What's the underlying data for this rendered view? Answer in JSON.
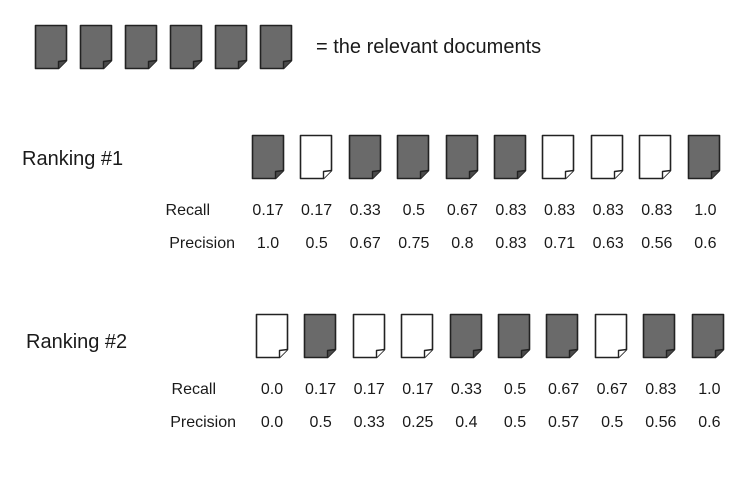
{
  "legend": {
    "text": "= the relevant documents",
    "relevant_count": 6
  },
  "colors": {
    "relevant_fill": "#6a6a6a",
    "nonrelevant_fill": "#ffffff",
    "stroke": "#222222"
  },
  "rankings": [
    {
      "label": "Ranking #1",
      "documents": [
        true,
        false,
        true,
        true,
        true,
        true,
        false,
        false,
        false,
        true
      ],
      "recall_label": "Recall",
      "precision_label": "Precision",
      "recall": [
        "0.17",
        "0.17",
        "0.33",
        "0.5",
        "0.67",
        "0.83",
        "0.83",
        "0.83",
        "0.83",
        "1.0"
      ],
      "precision": [
        "1.0",
        "0.5",
        "0.67",
        "0.75",
        "0.8",
        "0.83",
        "0.71",
        "0.63",
        "0.56",
        "0.6"
      ]
    },
    {
      "label": "Ranking #2",
      "documents": [
        false,
        true,
        false,
        false,
        true,
        true,
        true,
        false,
        true,
        true
      ],
      "recall_label": "Recall",
      "precision_label": "Precision",
      "recall": [
        "0.0",
        "0.17",
        "0.17",
        "0.17",
        "0.33",
        "0.5",
        "0.67",
        "0.67",
        "0.83",
        "1.0"
      ],
      "precision": [
        "0.0",
        "0.5",
        "0.33",
        "0.25",
        "0.4",
        "0.5",
        "0.57",
        "0.5",
        "0.56",
        "0.6"
      ]
    }
  ]
}
